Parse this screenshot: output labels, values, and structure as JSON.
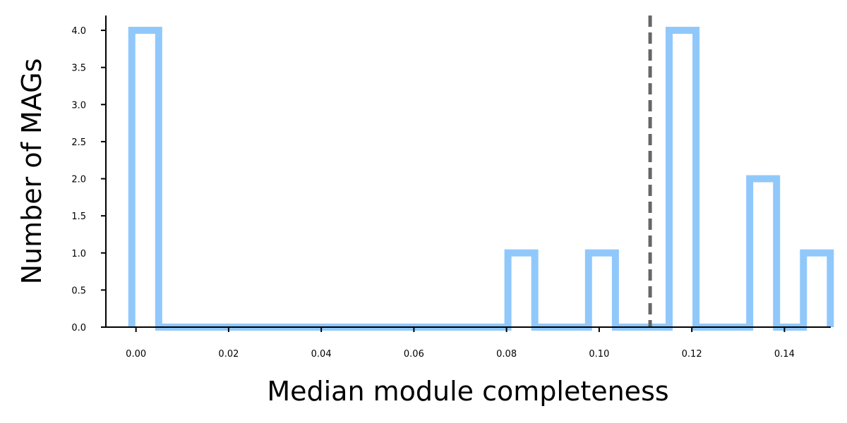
{
  "chart_data": {
    "type": "histogram",
    "xlabel": "Median module completeness",
    "ylabel": "Number of MAGs",
    "xlim": [
      -0.0065,
      0.15
    ],
    "ylim": [
      0,
      4.2
    ],
    "xticks": [
      0.0,
      0.02,
      0.04,
      0.06,
      0.08,
      0.1,
      0.12,
      0.14
    ],
    "xtick_labels": [
      "0.00",
      "0.02",
      "0.04",
      "0.06",
      "0.08",
      "0.10",
      "0.12",
      "0.14"
    ],
    "yticks": [
      0.0,
      0.5,
      1.0,
      1.5,
      2.0,
      2.5,
      3.0,
      3.5,
      4.0
    ],
    "ytick_labels": [
      "0.0",
      "0.5",
      "1.0",
      "1.5",
      "2.0",
      "2.5",
      "3.0",
      "3.5",
      "4.0"
    ],
    "bins": {
      "start": -0.0009,
      "width": 0.0058,
      "counts": [
        4,
        0,
        0,
        0,
        0,
        0,
        0,
        0,
        0,
        0,
        0,
        0,
        0,
        0,
        1,
        0,
        0,
        1,
        0,
        0,
        4,
        0,
        0,
        2,
        0,
        1
      ]
    },
    "vline": {
      "x": 0.111,
      "style": "dashed"
    },
    "colors": {
      "histogram": "#90c8fb",
      "vline": "#666666"
    },
    "grid": false
  }
}
